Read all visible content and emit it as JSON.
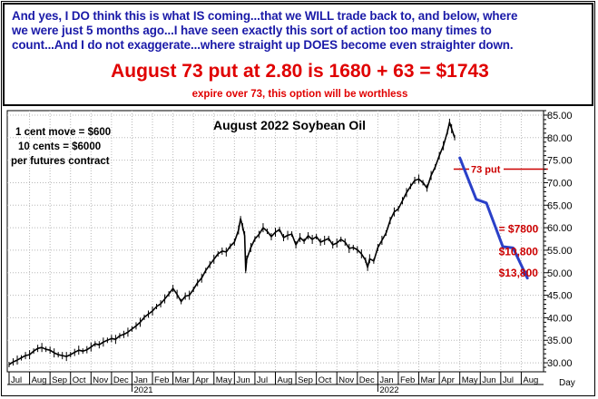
{
  "header": {
    "intro_lines": [
      "And yes, I DO think this is what IS coming...that we WILL trade back to, and below, where",
      "we were just 5 months ago...I have seen exactly this sort of action too many times to",
      "count...And I do not exaggerate...where straight up DOES become even straighter down."
    ],
    "headline": "August 73 put at 2.80 is 1680 + 63 = $1743",
    "subnote": "expire over 73, this option will be worthless"
  },
  "chart_data": {
    "type": "line",
    "title": "August 2022 Soybean Oil",
    "info_lines": [
      "1 cent move = $600",
      "10 cents = $6000",
      "per futures contract"
    ],
    "x_unit_label": "Day",
    "month_labels": [
      "Jul",
      "Aug",
      "Sep",
      "Oct",
      "Nov",
      "Dec",
      "Jan",
      "Feb",
      "Mar",
      "Apr",
      "May",
      "Jun",
      "Jul",
      "Aug",
      "Sep",
      "Oct",
      "Nov",
      "Dec",
      "Jan",
      "Feb",
      "Mar",
      "Apr",
      "May",
      "Jun",
      "Jul",
      "Aug"
    ],
    "year_labels": [
      {
        "label": "2021",
        "month_index": 6
      },
      {
        "label": "2022",
        "month_index": 18
      }
    ],
    "ylim": [
      28,
      86
    ],
    "y_ticks": [
      "30.00",
      "35.00",
      "40.00",
      "45.00",
      "50.00",
      "55.00",
      "60.00",
      "65.00",
      "70.00",
      "75.00",
      "80.00",
      "85.00"
    ],
    "series": [
      {
        "points": [
          [
            0,
            29.6
          ],
          [
            0.2,
            30.2
          ],
          [
            0.4,
            30.6
          ],
          [
            0.6,
            31.1
          ],
          [
            0.8,
            31.6
          ],
          [
            1.0,
            31.8
          ],
          [
            1.2,
            32.6
          ],
          [
            1.4,
            33.2
          ],
          [
            1.6,
            33.4
          ],
          [
            1.8,
            33.0
          ],
          [
            2.0,
            32.8
          ],
          [
            2.2,
            32.2
          ],
          [
            2.4,
            31.8
          ],
          [
            2.6,
            31.6
          ],
          [
            2.8,
            31.4
          ],
          [
            3.0,
            31.8
          ],
          [
            3.2,
            32.3
          ],
          [
            3.4,
            32.8
          ],
          [
            3.6,
            32.6
          ],
          [
            3.8,
            32.9
          ],
          [
            4.0,
            33.5
          ],
          [
            4.2,
            34.2
          ],
          [
            4.4,
            34.0
          ],
          [
            4.6,
            34.6
          ],
          [
            4.8,
            35.0
          ],
          [
            5.0,
            35.4
          ],
          [
            5.2,
            35.2
          ],
          [
            5.4,
            36.0
          ],
          [
            5.6,
            36.3
          ],
          [
            5.8,
            36.8
          ],
          [
            6.0,
            37.5
          ],
          [
            6.2,
            38.2
          ],
          [
            6.4,
            39.0
          ],
          [
            6.6,
            40.1
          ],
          [
            6.8,
            40.8
          ],
          [
            7.0,
            41.5
          ],
          [
            7.2,
            42.5
          ],
          [
            7.4,
            43.1
          ],
          [
            7.6,
            44.2
          ],
          [
            7.8,
            45.3
          ],
          [
            8.0,
            46.5
          ],
          [
            8.2,
            45.2
          ],
          [
            8.4,
            43.6
          ],
          [
            8.6,
            44.8
          ],
          [
            8.8,
            45.0
          ],
          [
            9.0,
            46.3
          ],
          [
            9.2,
            47.8
          ],
          [
            9.4,
            48.8
          ],
          [
            9.6,
            50.5
          ],
          [
            9.8,
            51.8
          ],
          [
            10.0,
            53.0
          ],
          [
            10.2,
            54.2
          ],
          [
            10.4,
            54.8
          ],
          [
            10.6,
            54.6
          ],
          [
            10.8,
            55.9
          ],
          [
            11.0,
            56.8
          ],
          [
            11.2,
            59.5
          ],
          [
            11.3,
            62.0
          ],
          [
            11.4,
            60.2
          ],
          [
            11.5,
            58.2
          ],
          [
            11.55,
            50.5
          ],
          [
            11.6,
            53.0
          ],
          [
            11.8,
            55.6
          ],
          [
            12.0,
            57.5
          ],
          [
            12.2,
            58.5
          ],
          [
            12.4,
            60.0
          ],
          [
            12.6,
            59.2
          ],
          [
            12.8,
            58.0
          ],
          [
            13.0,
            59.0
          ],
          [
            13.2,
            59.6
          ],
          [
            13.4,
            57.8
          ],
          [
            13.6,
            58.3
          ],
          [
            13.8,
            58.6
          ],
          [
            14.0,
            56.2
          ],
          [
            14.2,
            57.8
          ],
          [
            14.4,
            57.0
          ],
          [
            14.6,
            58.2
          ],
          [
            14.8,
            57.4
          ],
          [
            15.0,
            58.0
          ],
          [
            15.2,
            56.8
          ],
          [
            15.4,
            57.2
          ],
          [
            15.6,
            57.6
          ],
          [
            15.8,
            56.2
          ],
          [
            16.0,
            56.6
          ],
          [
            16.2,
            57.4
          ],
          [
            16.4,
            56.8
          ],
          [
            16.6,
            55.4
          ],
          [
            16.8,
            55.6
          ],
          [
            17.0,
            55.1
          ],
          [
            17.2,
            54.2
          ],
          [
            17.4,
            52.8
          ],
          [
            17.5,
            51.2
          ],
          [
            17.6,
            53.1
          ],
          [
            17.8,
            52.6
          ],
          [
            18.0,
            55.6
          ],
          [
            18.2,
            57.2
          ],
          [
            18.4,
            58.8
          ],
          [
            18.6,
            61.6
          ],
          [
            18.8,
            63.5
          ],
          [
            19.0,
            64.2
          ],
          [
            19.2,
            66.0
          ],
          [
            19.4,
            67.8
          ],
          [
            19.6,
            69.2
          ],
          [
            19.8,
            70.5
          ],
          [
            20.0,
            70.8
          ],
          [
            20.2,
            70.0
          ],
          [
            20.4,
            68.8
          ],
          [
            20.6,
            71.6
          ],
          [
            20.8,
            73.5
          ],
          [
            21.0,
            76.0
          ],
          [
            21.2,
            78.2
          ],
          [
            21.4,
            81.3
          ],
          [
            21.5,
            83.4
          ],
          [
            21.6,
            82.0
          ],
          [
            21.75,
            80.0
          ]
        ]
      }
    ],
    "projection": {
      "points": [
        [
          22.0,
          75.5
        ],
        [
          22.8,
          66.3
        ],
        [
          23.3,
          65.5
        ],
        [
          24.1,
          55.8
        ],
        [
          24.6,
          55.5
        ],
        [
          25.3,
          48.8
        ]
      ],
      "color": "#2a40c8"
    },
    "put_strike": {
      "label": "73 put",
      "value": 73,
      "x_start": 21.7,
      "x_end": 26.3,
      "color": "#cc0000"
    },
    "annotations": [
      {
        "text": "= $7800",
        "x": 23.9,
        "y": 59.7
      },
      {
        "text": "$10,800",
        "x": 23.9,
        "y": 54.7
      },
      {
        "text": "$13,800",
        "x": 23.9,
        "y": 50.0
      }
    ]
  }
}
